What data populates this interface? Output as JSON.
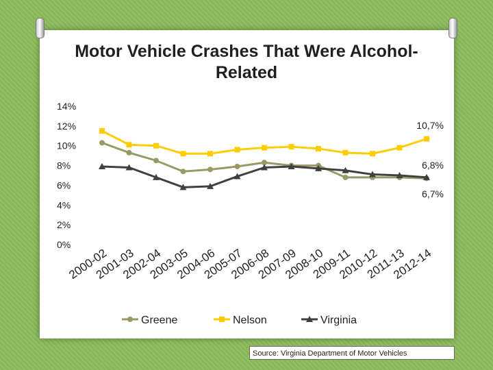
{
  "chart_data": {
    "type": "line",
    "title": "Motor Vehicle Crashes That Were Alcohol-Related",
    "categories": [
      "2000-02",
      "2001-03",
      "2002-04",
      "2003-05",
      "2004-06",
      "2005-07",
      "2006-08",
      "2007-09",
      "2008-10",
      "2009-11",
      "2010-12",
      "2011-13",
      "2012-14"
    ],
    "ylim": [
      0,
      14
    ],
    "yticks": [
      "0%",
      "2%",
      "4%",
      "6%",
      "8%",
      "10%",
      "12%",
      "14%"
    ],
    "series": [
      {
        "name": "Greene",
        "color": "#999966",
        "marker": "circle",
        "values": [
          10.3,
          9.3,
          8.5,
          7.4,
          7.6,
          7.9,
          8.3,
          8.0,
          8.0,
          6.8,
          6.8,
          6.8,
          6.7
        ]
      },
      {
        "name": "Nelson",
        "color": "#ffcc00",
        "marker": "square",
        "values": [
          11.5,
          10.1,
          10.0,
          9.2,
          9.2,
          9.6,
          9.8,
          9.9,
          9.7,
          9.3,
          9.2,
          9.8,
          10.7
        ]
      },
      {
        "name": "Virginia",
        "color": "#404040",
        "marker": "triangle",
        "values": [
          7.9,
          7.8,
          6.8,
          5.8,
          5.9,
          6.9,
          7.8,
          7.9,
          7.7,
          7.5,
          7.1,
          7.0,
          6.8
        ]
      }
    ],
    "annotations": [
      "10,7%",
      "6,8%",
      "6,7%"
    ],
    "legend_position": "bottom",
    "source": "Source: Virginia Department of Motor Vehicles"
  }
}
